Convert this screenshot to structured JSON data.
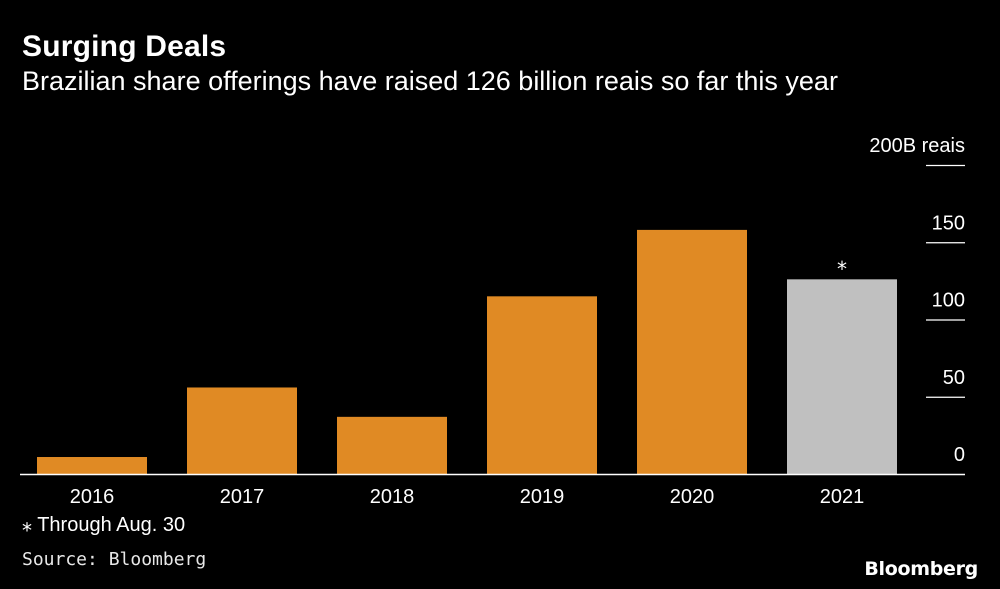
{
  "header": {
    "title": "Surging Deals",
    "subtitle": "Brazilian share offerings have raised 126 billion reais so far this year"
  },
  "footer": {
    "footnote": "⁎ Through Aug. 30",
    "source": "Source: Bloomberg",
    "logo": "Bloomberg"
  },
  "colors": {
    "bar": "#E08A24",
    "bar_highlight": "#C0C0C0",
    "background": "#000000",
    "axis": "#ffffff"
  },
  "chart_data": {
    "type": "bar",
    "title": "Surging Deals",
    "subtitle": "Brazilian share offerings have raised 126 billion reais so far this year",
    "categories": [
      "2016",
      "2017",
      "2018",
      "2019",
      "2020",
      "2021"
    ],
    "values": [
      11,
      56,
      37,
      115,
      158,
      126
    ],
    "highlight": [
      false,
      false,
      false,
      false,
      false,
      true
    ],
    "bar_annotations": [
      "",
      "",
      "",
      "",
      "",
      "⁎"
    ],
    "ylim": [
      0,
      200
    ],
    "yticks": [
      {
        "value": 0,
        "label": "0"
      },
      {
        "value": 50,
        "label": "50"
      },
      {
        "value": 100,
        "label": "100"
      },
      {
        "value": 150,
        "label": "150"
      },
      {
        "value": 200,
        "label": "200B reais"
      }
    ],
    "xlabel": "",
    "ylabel": "",
    "y_axis_side": "right",
    "grid": false
  }
}
